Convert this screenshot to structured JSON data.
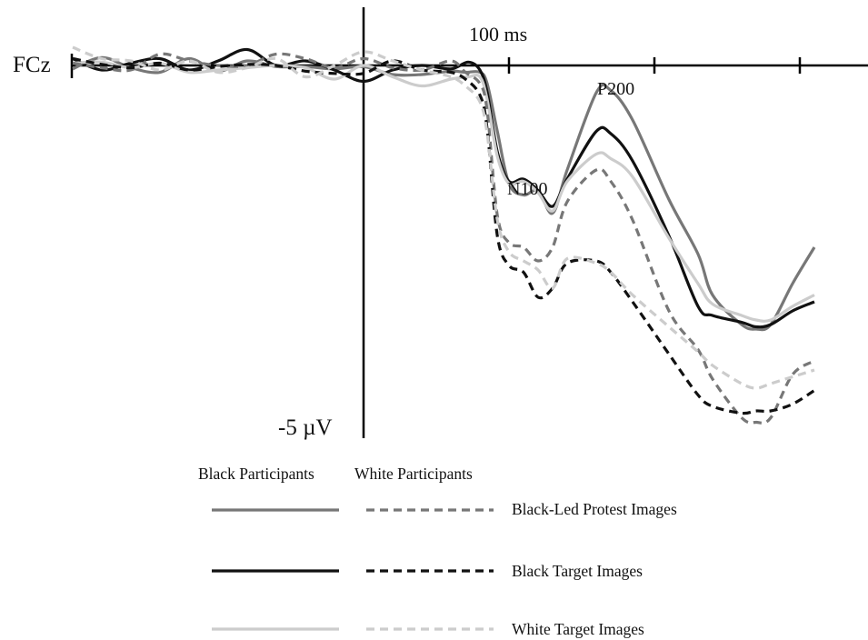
{
  "chart_data": {
    "type": "line",
    "channel_label": "FCz",
    "time_scale_label": "100 ms",
    "amplitude_scale_label": "-5 µV",
    "component_labels": [
      "N100",
      "P200"
    ],
    "legend": {
      "placement": "bottom-left",
      "column_headers": [
        "Black Participants",
        "White Participants"
      ],
      "rows": [
        {
          "label": "Black-Led Protest Images",
          "color": "#777777"
        },
        {
          "label": "Black Target Images",
          "color": "#111111"
        },
        {
          "label": "White Target Images",
          "color": "#cccccc"
        }
      ]
    },
    "series": [
      {
        "participants": "Black Participants",
        "images": "Black-Led Protest Images",
        "dash": "solid",
        "color": "#777777",
        "width": 3.2,
        "points": [
          [
            -200,
            -0.15
          ],
          [
            -180,
            0.35
          ],
          [
            -160,
            -0.1
          ],
          [
            -140,
            -0.3
          ],
          [
            -120,
            0.3
          ],
          [
            -100,
            -0.25
          ],
          [
            -80,
            0.2
          ],
          [
            -60,
            -0.05
          ],
          [
            -40,
            -0.05
          ],
          [
            -20,
            -0.15
          ],
          [
            0,
            -0.05
          ],
          [
            20,
            -0.4
          ],
          [
            40,
            -0.4
          ],
          [
            60,
            -0.25
          ],
          [
            70,
            -0.3
          ],
          [
            80,
            -0.3
          ],
          [
            85,
            -0.8
          ],
          [
            92,
            -2.9
          ],
          [
            100,
            -5.2
          ],
          [
            110,
            -5.7
          ],
          [
            120,
            -5.5
          ],
          [
            130,
            -6.5
          ],
          [
            140,
            -4.6
          ],
          [
            160,
            -1.2
          ],
          [
            170,
            -1.1
          ],
          [
            185,
            -2.4
          ],
          [
            210,
            -5.9
          ],
          [
            230,
            -8.3
          ],
          [
            240,
            -10.1
          ],
          [
            260,
            -11.4
          ],
          [
            270,
            -11.6
          ],
          [
            280,
            -11.4
          ],
          [
            295,
            -9.6
          ],
          [
            310,
            -8.0
          ]
        ]
      },
      {
        "participants": "Black Participants",
        "images": "Black Target Images",
        "dash": "solid",
        "color": "#111111",
        "width": 3.2,
        "points": [
          [
            -200,
            0.3
          ],
          [
            -180,
            -0.2
          ],
          [
            -160,
            0.1
          ],
          [
            -140,
            0.3
          ],
          [
            -120,
            -0.2
          ],
          [
            -100,
            0.2
          ],
          [
            -80,
            0.7
          ],
          [
            -60,
            0.0
          ],
          [
            -40,
            0.2
          ],
          [
            -20,
            -0.2
          ],
          [
            0,
            -0.7
          ],
          [
            20,
            -0.2
          ],
          [
            40,
            0.0
          ],
          [
            60,
            -0.15
          ],
          [
            72,
            0.15
          ],
          [
            80,
            -0.2
          ],
          [
            85,
            -1.2
          ],
          [
            92,
            -3.8
          ],
          [
            100,
            -5.1
          ],
          [
            110,
            -5.0
          ],
          [
            120,
            -5.5
          ],
          [
            130,
            -6.2
          ],
          [
            140,
            -5.0
          ],
          [
            160,
            -2.9
          ],
          [
            170,
            -3.0
          ],
          [
            185,
            -4.2
          ],
          [
            210,
            -7.5
          ],
          [
            230,
            -10.6
          ],
          [
            240,
            -11.0
          ],
          [
            260,
            -11.3
          ],
          [
            270,
            -11.5
          ],
          [
            280,
            -11.4
          ],
          [
            295,
            -10.8
          ],
          [
            310,
            -10.4
          ]
        ]
      },
      {
        "participants": "Black Participants",
        "images": "White Target Images",
        "dash": "solid",
        "color": "#cccccc",
        "width": 3.2,
        "points": [
          [
            -200,
            0.1
          ],
          [
            -180,
            0.15
          ],
          [
            -160,
            -0.1
          ],
          [
            -140,
            0.1
          ],
          [
            -120,
            -0.3
          ],
          [
            -100,
            -0.2
          ],
          [
            -80,
            -0.1
          ],
          [
            -60,
            0.0
          ],
          [
            -40,
            -0.1
          ],
          [
            -20,
            -0.6
          ],
          [
            0,
            0.0
          ],
          [
            20,
            -0.5
          ],
          [
            40,
            -0.9
          ],
          [
            60,
            -0.6
          ],
          [
            72,
            -0.5
          ],
          [
            80,
            -0.5
          ],
          [
            85,
            -1.5
          ],
          [
            92,
            -4.0
          ],
          [
            100,
            -5.2
          ],
          [
            110,
            -5.1
          ],
          [
            120,
            -5.6
          ],
          [
            130,
            -6.4
          ],
          [
            140,
            -5.1
          ],
          [
            160,
            -3.9
          ],
          [
            170,
            -4.1
          ],
          [
            185,
            -4.9
          ],
          [
            210,
            -7.6
          ],
          [
            230,
            -9.6
          ],
          [
            240,
            -10.5
          ],
          [
            260,
            -11.0
          ],
          [
            270,
            -11.2
          ],
          [
            280,
            -11.2
          ],
          [
            295,
            -10.6
          ],
          [
            310,
            -10.1
          ]
        ]
      },
      {
        "participants": "White Participants",
        "images": "Black-Led Protest Images",
        "dash": "dashed",
        "color": "#777777",
        "width": 3.2,
        "points": [
          [
            -200,
            0.1
          ],
          [
            -180,
            -0.1
          ],
          [
            -160,
            -0.2
          ],
          [
            -140,
            0.5
          ],
          [
            -120,
            0.2
          ],
          [
            -100,
            0.0
          ],
          [
            -80,
            0.0
          ],
          [
            -60,
            0.5
          ],
          [
            -40,
            0.3
          ],
          [
            -20,
            -0.1
          ],
          [
            0,
            0.3
          ],
          [
            20,
            -0.1
          ],
          [
            40,
            -0.2
          ],
          [
            60,
            0.2
          ],
          [
            70,
            -0.3
          ],
          [
            80,
            -0.8
          ],
          [
            85,
            -2.0
          ],
          [
            92,
            -6.6
          ],
          [
            100,
            -7.8
          ],
          [
            110,
            -8.0
          ],
          [
            120,
            -8.6
          ],
          [
            130,
            -8.0
          ],
          [
            140,
            -6.0
          ],
          [
            160,
            -4.6
          ],
          [
            170,
            -5.1
          ],
          [
            185,
            -6.8
          ],
          [
            210,
            -10.8
          ],
          [
            230,
            -12.5
          ],
          [
            240,
            -13.8
          ],
          [
            260,
            -15.5
          ],
          [
            270,
            -15.7
          ],
          [
            280,
            -15.5
          ],
          [
            295,
            -13.6
          ],
          [
            310,
            -13.0
          ]
        ]
      },
      {
        "participants": "White Participants",
        "images": "Black Target Images",
        "dash": "dashed",
        "color": "#111111",
        "width": 3.2,
        "points": [
          [
            -200,
            0.3
          ],
          [
            -180,
            0.05
          ],
          [
            -160,
            -0.1
          ],
          [
            -140,
            0.1
          ],
          [
            -120,
            -0.2
          ],
          [
            -100,
            -0.05
          ],
          [
            -80,
            0.05
          ],
          [
            -60,
            0.0
          ],
          [
            -40,
            -0.25
          ],
          [
            -20,
            -0.35
          ],
          [
            0,
            -0.35
          ],
          [
            20,
            0.2
          ],
          [
            40,
            -0.2
          ],
          [
            60,
            -0.3
          ],
          [
            70,
            -0.6
          ],
          [
            80,
            -1.3
          ],
          [
            85,
            -2.8
          ],
          [
            92,
            -7.5
          ],
          [
            100,
            -8.8
          ],
          [
            110,
            -9.1
          ],
          [
            120,
            -10.2
          ],
          [
            130,
            -9.8
          ],
          [
            140,
            -8.7
          ],
          [
            160,
            -8.6
          ],
          [
            170,
            -9.1
          ],
          [
            185,
            -10.4
          ],
          [
            210,
            -12.7
          ],
          [
            230,
            -14.5
          ],
          [
            240,
            -15.0
          ],
          [
            260,
            -15.3
          ],
          [
            270,
            -15.2
          ],
          [
            280,
            -15.2
          ],
          [
            295,
            -14.9
          ],
          [
            310,
            -14.3
          ]
        ]
      },
      {
        "participants": "White Participants",
        "images": "White Target Images",
        "dash": "dashed",
        "color": "#cccccc",
        "width": 3.2,
        "points": [
          [
            -200,
            0.8
          ],
          [
            -180,
            0.3
          ],
          [
            -160,
            0.2
          ],
          [
            -140,
            -0.2
          ],
          [
            -120,
            0.2
          ],
          [
            -100,
            -0.3
          ],
          [
            -80,
            -0.1
          ],
          [
            -60,
            0.3
          ],
          [
            -40,
            -0.5
          ],
          [
            -20,
            0.0
          ],
          [
            0,
            0.6
          ],
          [
            20,
            0.2
          ],
          [
            40,
            -0.2
          ],
          [
            60,
            -0.5
          ],
          [
            70,
            -0.9
          ],
          [
            80,
            -1.6
          ],
          [
            85,
            -3.0
          ],
          [
            92,
            -6.8
          ],
          [
            100,
            -8.2
          ],
          [
            110,
            -8.6
          ],
          [
            120,
            -9.0
          ],
          [
            130,
            -9.8
          ],
          [
            140,
            -8.5
          ],
          [
            160,
            -8.7
          ],
          [
            170,
            -9.1
          ],
          [
            185,
            -10.1
          ],
          [
            210,
            -11.5
          ],
          [
            230,
            -12.6
          ],
          [
            240,
            -13.2
          ],
          [
            260,
            -14.0
          ],
          [
            270,
            -14.2
          ],
          [
            280,
            -14.0
          ],
          [
            295,
            -13.7
          ],
          [
            310,
            -13.4
          ]
        ]
      }
    ]
  }
}
